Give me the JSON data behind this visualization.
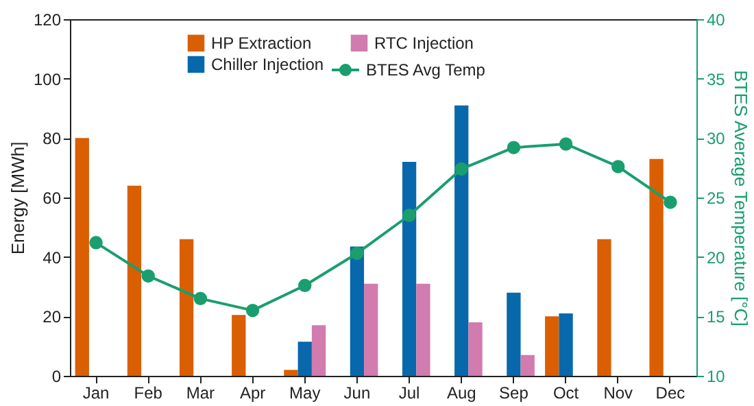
{
  "chart_data": {
    "type": "bar",
    "categories": [
      "Jan",
      "Feb",
      "Mar",
      "Apr",
      "May",
      "Jun",
      "Jul",
      "Aug",
      "Sep",
      "Oct",
      "Nov",
      "Dec"
    ],
    "ylabel": "Energy [MWh]",
    "y2label": "BTES Average Temperature [°C]",
    "ylim": [
      0,
      120
    ],
    "yticks": [
      0,
      20,
      40,
      60,
      80,
      100,
      120
    ],
    "y2lim": [
      10,
      40
    ],
    "y2ticks": [
      10,
      15,
      20,
      25,
      30,
      35,
      40
    ],
    "grid": false,
    "legend": "top",
    "marker": "circle",
    "line_style": "solid",
    "series": [
      {
        "name": "HP Extraction",
        "color": "#d95f02",
        "values": [
          80,
          64,
          46,
          20.5,
          2,
          null,
          null,
          null,
          null,
          20,
          46,
          73
        ]
      },
      {
        "name": "Chiller Injection",
        "color": "#0868ac",
        "values": [
          null,
          null,
          null,
          null,
          11.5,
          43.5,
          72,
          91,
          28,
          21,
          null,
          null
        ]
      },
      {
        "name": "RTC Injection",
        "color": "#d17bae",
        "values": [
          null,
          null,
          null,
          null,
          17,
          31,
          31,
          18,
          7,
          null,
          null,
          null
        ]
      },
      {
        "name": "BTES Avg Temp",
        "color": "#1a9e6e",
        "type": "line",
        "axis": "y2",
        "values": [
          21.2,
          18.4,
          16.5,
          15.5,
          17.6,
          20.3,
          23.5,
          27.4,
          29.2,
          29.5,
          27.6,
          24.6
        ]
      }
    ]
  }
}
